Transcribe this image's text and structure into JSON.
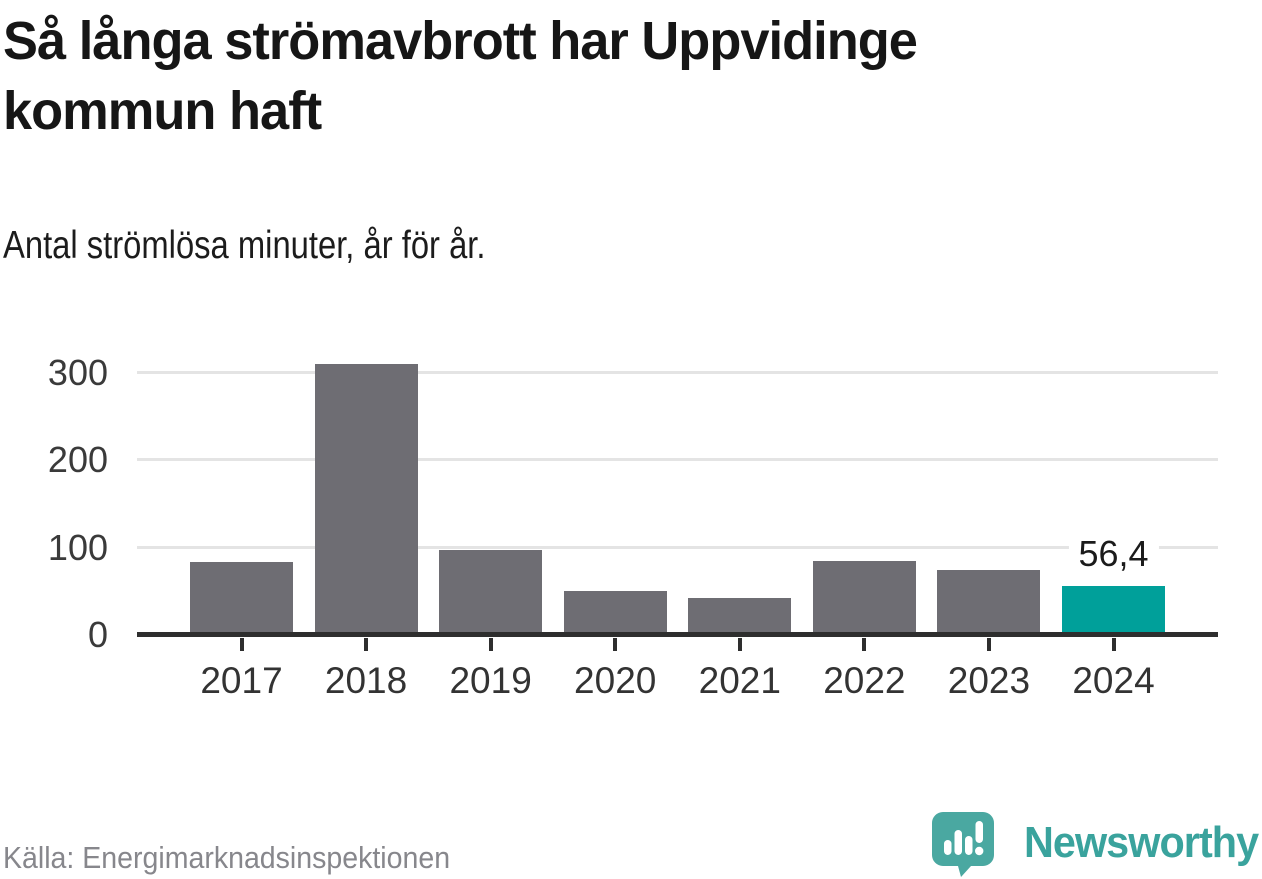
{
  "header": {
    "title_lines": [
      "Så långa strömavbrott har Uppvidinge",
      "kommun haft"
    ],
    "subtitle": "Antal strömlösa minuter, år för år."
  },
  "chart_data": {
    "type": "bar",
    "title": "Så långa strömavbrott har Uppvidinge kommun haft",
    "subtitle": "Antal strömlösa minuter, år för år.",
    "xlabel": "",
    "ylabel": "",
    "categories": [
      "2017",
      "2018",
      "2019",
      "2020",
      "2021",
      "2022",
      "2023",
      "2024"
    ],
    "values": [
      84,
      310,
      97,
      50,
      42,
      85,
      75,
      56.4
    ],
    "y_ticks": [
      0,
      100,
      200,
      300
    ],
    "ylim": [
      0,
      338
    ],
    "grid": "horizontal-only",
    "legend": "none",
    "bar_color": "#6e6d73",
    "highlight_index": 7,
    "highlight_color": "#00a09a",
    "highlight_value_label": "56,4"
  },
  "footer": {
    "source": "Källa: Energimarknadsinspektionen",
    "brand": {
      "name": "Newsworthy",
      "icon": "bar-chart-speech-bubble-icon",
      "icon_color": "#4aa8a1",
      "text_color": "#3aa39d"
    }
  }
}
